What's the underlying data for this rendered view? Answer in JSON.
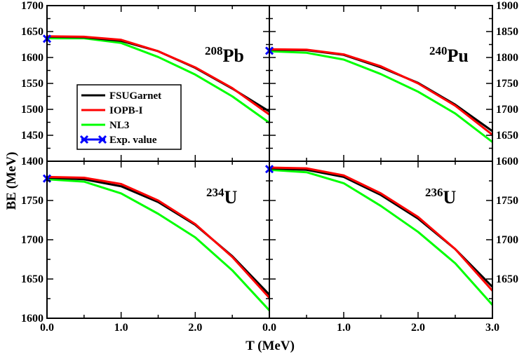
{
  "chart_data": {
    "type": "line",
    "xlabel": "T (MeV)",
    "ylabel": "BE (MeV)",
    "legend": {
      "placement": "left, inside top-left panel",
      "entries": [
        "FSUGarnet",
        "IOPB-I",
        "NL3",
        "Exp. value"
      ]
    },
    "colors": {
      "FSUGarnet": "#000000",
      "IOPB-I": "#ff0000",
      "NL3": "#00ff00",
      "Exp. value": "#0000ff"
    },
    "panels": [
      {
        "id": "pb208",
        "mass_number": "208",
        "element": "Pb",
        "xlim": [
          0,
          3
        ],
        "ylim": [
          1400,
          1700
        ],
        "x_tick_labels": [],
        "y_tick_side": "left",
        "y_ticks": [
          1400,
          1450,
          1500,
          1550,
          1600,
          1650,
          1700
        ],
        "y_tick_labels": [
          "1400",
          "1450",
          "1500",
          "1550",
          "1600",
          "1650",
          "1700"
        ],
        "exp_value": {
          "x": 0,
          "y": 1636
        },
        "series": [
          {
            "name": "FSUGarnet",
            "x": [
              0,
              0.5,
              1.0,
              1.5,
              2.0,
              2.5,
              3.0
            ],
            "values": [
              1640,
              1639,
              1632,
              1612,
              1580,
              1540,
              1496
            ]
          },
          {
            "name": "IOPB-I",
            "x": [
              0,
              0.5,
              1.0,
              1.5,
              2.0,
              2.5,
              3.0
            ],
            "values": [
              1641,
              1640,
              1634,
              1612,
              1581,
              1541,
              1490
            ]
          },
          {
            "name": "NL3",
            "x": [
              0,
              0.5,
              1.0,
              1.5,
              2.0,
              2.5,
              3.0
            ],
            "values": [
              1637,
              1637,
              1628,
              1601,
              1567,
              1525,
              1474
            ]
          }
        ]
      },
      {
        "id": "pu240",
        "mass_number": "240",
        "element": "Pu",
        "xlim": [
          0,
          3
        ],
        "ylim": [
          1600,
          1900
        ],
        "x_tick_labels": [],
        "y_tick_side": "right",
        "y_ticks": [
          1600,
          1650,
          1700,
          1750,
          1800,
          1850,
          1900
        ],
        "y_tick_labels": [
          "1600",
          "1650",
          "1700",
          "1750",
          "1800",
          "1850",
          "1900"
        ],
        "exp_value": {
          "x": 0,
          "y": 1813
        },
        "series": [
          {
            "name": "FSUGarnet",
            "x": [
              0,
              0.5,
              1.0,
              1.5,
              2.0,
              2.5,
              3.0
            ],
            "values": [
              1815,
              1814,
              1805,
              1781,
              1751,
              1709,
              1658
            ]
          },
          {
            "name": "IOPB-I",
            "x": [
              0,
              0.5,
              1.0,
              1.5,
              2.0,
              2.5,
              3.0
            ],
            "values": [
              1816,
              1815,
              1806,
              1783,
              1750,
              1707,
              1651
            ]
          },
          {
            "name": "NL3",
            "x": [
              0,
              0.5,
              1.0,
              1.5,
              2.0,
              2.5,
              3.0
            ],
            "values": [
              1812,
              1809,
              1796,
              1768,
              1734,
              1692,
              1637
            ]
          }
        ]
      },
      {
        "id": "u234",
        "mass_number": "234",
        "element": "U",
        "xlim": [
          0,
          3
        ],
        "ylim": [
          1600,
          1800
        ],
        "x_ticks": [
          0,
          1,
          2,
          3
        ],
        "x_tick_labels": [
          "0.0",
          "1.0",
          "2.0",
          "0.0"
        ],
        "y_tick_side": "left",
        "y_ticks": [
          1600,
          1650,
          1700,
          1750
        ],
        "y_tick_labels": [
          "1600",
          "1650",
          "1700",
          "1750"
        ],
        "exp_value": {
          "x": 0,
          "y": 1778
        },
        "series": [
          {
            "name": "FSUGarnet",
            "x": [
              0,
              0.5,
              1.0,
              1.5,
              2.0,
              2.5,
              3.0
            ],
            "values": [
              1779,
              1777,
              1768,
              1748,
              1719,
              1679,
              1630
            ]
          },
          {
            "name": "IOPB-I",
            "x": [
              0,
              0.5,
              1.0,
              1.5,
              2.0,
              2.5,
              3.0
            ],
            "values": [
              1780,
              1779,
              1771,
              1750,
              1720,
              1678,
              1626
            ]
          },
          {
            "name": "NL3",
            "x": [
              0,
              0.5,
              1.0,
              1.5,
              2.0,
              2.5,
              3.0
            ],
            "values": [
              1777,
              1774,
              1759,
              1733,
              1703,
              1661,
              1610
            ]
          }
        ]
      },
      {
        "id": "u236",
        "mass_number": "236",
        "element": "U",
        "xlim": [
          0,
          3
        ],
        "ylim": [
          1600,
          1800
        ],
        "x_ticks": [
          1,
          2,
          3
        ],
        "x_tick_labels": [
          "1.0",
          "2.0",
          "3.0"
        ],
        "y_tick_side": "right",
        "y_ticks": [
          1650,
          1700,
          1750
        ],
        "y_tick_labels": [
          "1650",
          "1700",
          "1750"
        ],
        "exp_value": {
          "x": 0,
          "y": 1790
        },
        "series": [
          {
            "name": "FSUGarnet",
            "x": [
              0,
              0.5,
              1.0,
              1.5,
              2.0,
              2.5,
              3.0
            ],
            "values": [
              1791,
              1789,
              1780,
              1757,
              1727,
              1688,
              1640
            ]
          },
          {
            "name": "IOPB-I",
            "x": [
              0,
              0.5,
              1.0,
              1.5,
              2.0,
              2.5,
              3.0
            ],
            "values": [
              1792,
              1791,
              1782,
              1759,
              1729,
              1688,
              1635
            ]
          },
          {
            "name": "NL3",
            "x": [
              0,
              0.5,
              1.0,
              1.5,
              2.0,
              2.5,
              3.0
            ],
            "values": [
              1789,
              1786,
              1772,
              1743,
              1710,
              1670,
              1617
            ]
          }
        ]
      }
    ]
  }
}
